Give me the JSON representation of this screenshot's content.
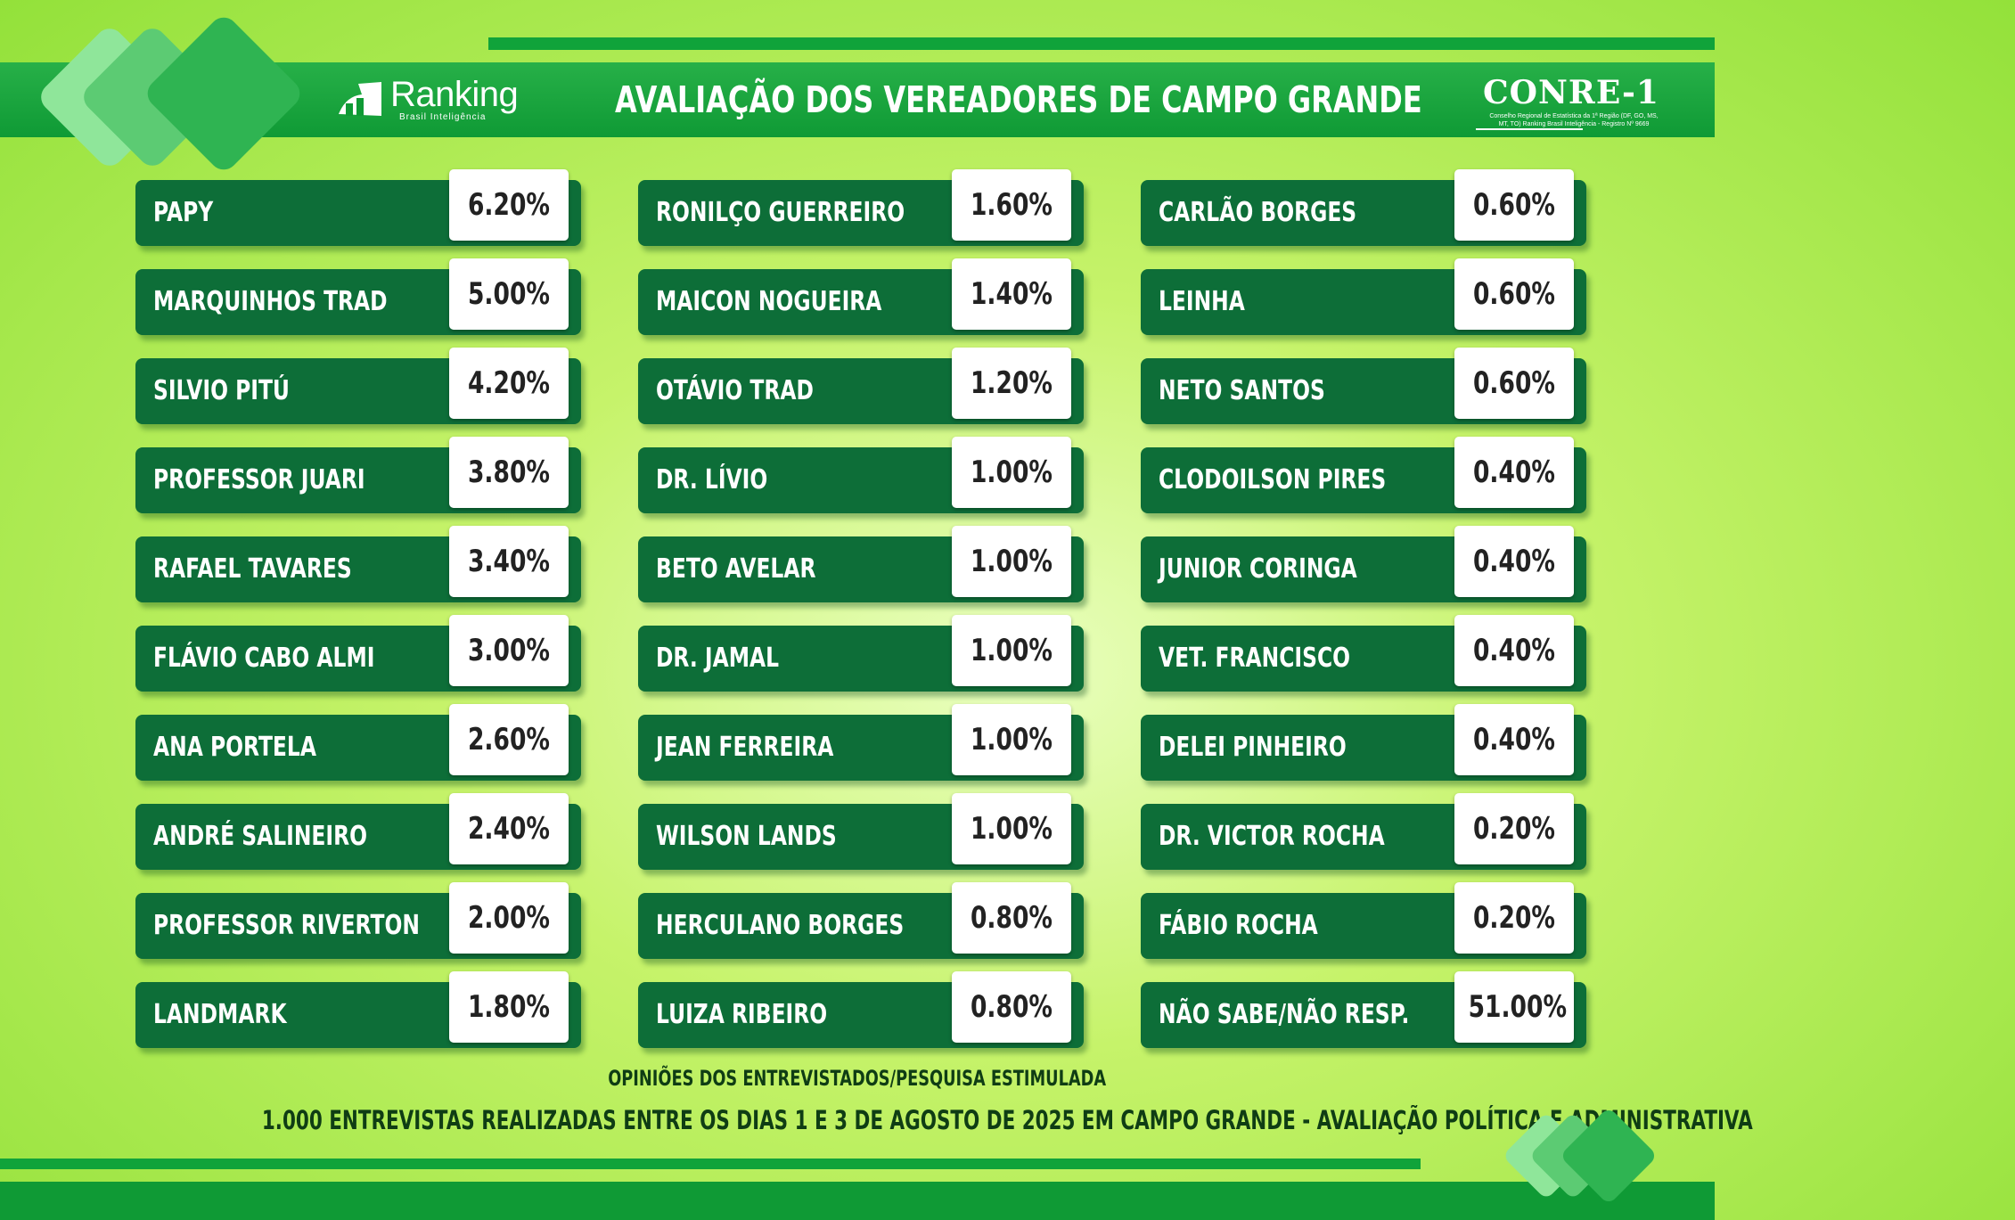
{
  "header": {
    "title": "AVALIAÇÃO DOS VEREADORES DE CAMPO GRANDE",
    "left_logo": "Ranking",
    "left_logo_sub": "Brasil Inteligência",
    "right_logo": "CONRE-1",
    "right_logo_sub": "Conselho Regional de Estatística da 1ª Região (DF, GO, MS, MT, TO) Ranking Brasil Inteligência - Registro Nº 9669"
  },
  "chart_data": {
    "type": "table",
    "title": "AVALIAÇÃO DOS VEREADORES DE CAMPO GRANDE",
    "columns": [
      [
        {
          "name": "PAPY",
          "label": "6.20%",
          "value": 6.2
        },
        {
          "name": "MARQUINHOS TRAD",
          "label": "5.00%",
          "value": 5.0
        },
        {
          "name": "SILVIO PITÚ",
          "label": "4.20%",
          "value": 4.2
        },
        {
          "name": "PROFESSOR JUARI",
          "label": "3.80%",
          "value": 3.8
        },
        {
          "name": "RAFAEL TAVARES",
          "label": "3.40%",
          "value": 3.4
        },
        {
          "name": "FLÁVIO CABO ALMI",
          "label": "3.00%",
          "value": 3.0
        },
        {
          "name": "ANA PORTELA",
          "label": "2.60%",
          "value": 2.6
        },
        {
          "name": "ANDRÉ SALINEIRO",
          "label": "2.40%",
          "value": 2.4
        },
        {
          "name": "PROFESSOR RIVERTON",
          "label": "2.00%",
          "value": 2.0
        },
        {
          "name": "LANDMARK",
          "label": "1.80%",
          "value": 1.8
        }
      ],
      [
        {
          "name": "RONILÇO GUERREIRO",
          "label": "1.60%",
          "value": 1.6
        },
        {
          "name": "MAICON NOGUEIRA",
          "label": "1.40%",
          "value": 1.4
        },
        {
          "name": "OTÁVIO TRAD",
          "label": "1.20%",
          "value": 1.2
        },
        {
          "name": "DR. LÍVIO",
          "label": "1.00%",
          "value": 1.0
        },
        {
          "name": "BETO AVELAR",
          "label": "1.00%",
          "value": 1.0
        },
        {
          "name": "DR. JAMAL",
          "label": "1.00%",
          "value": 1.0
        },
        {
          "name": "JEAN FERREIRA",
          "label": "1.00%",
          "value": 1.0
        },
        {
          "name": "WILSON LANDS",
          "label": "1.00%",
          "value": 1.0
        },
        {
          "name": "HERCULANO BORGES",
          "label": "0.80%",
          "value": 0.8
        },
        {
          "name": "LUIZA RIBEIRO",
          "label": "0.80%",
          "value": 0.8
        }
      ],
      [
        {
          "name": "CARLÃO BORGES",
          "label": "0.60%",
          "value": 0.6
        },
        {
          "name": "LEINHA",
          "label": "0.60%",
          "value": 0.6
        },
        {
          "name": "NETO SANTOS",
          "label": "0.60%",
          "value": 0.6
        },
        {
          "name": "CLODOILSON PIRES",
          "label": "0.40%",
          "value": 0.4
        },
        {
          "name": "JUNIOR CORINGA",
          "label": "0.40%",
          "value": 0.4
        },
        {
          "name": "VET. FRANCISCO",
          "label": "0.40%",
          "value": 0.4
        },
        {
          "name": "DELEI PINHEIRO",
          "label": "0.40%",
          "value": 0.4
        },
        {
          "name": "DR. VICTOR ROCHA",
          "label": "0.20%",
          "value": 0.2
        },
        {
          "name": "FÁBIO ROCHA",
          "label": "0.20%",
          "value": 0.2
        },
        {
          "name": "NÃO SABE/NÃO RESP.",
          "label": "51.00%",
          "value": 51.0
        }
      ]
    ]
  },
  "footer": {
    "note1": "OPINIÕES DOS ENTREVISTADOS/PESQUISA ESTIMULADA",
    "note2": "1.000 ENTREVISTAS REALIZADAS ENTRE OS DIAS 1 E 3 DE AGOSTO DE 2025 EM CAMPO GRANDE - AVALIAÇÃO POLÍTICA E ADMINISTRATIVA"
  },
  "colors": {
    "bar": "#0d6e38",
    "header": "#0f9a35",
    "accent_light": "#8fe69a",
    "background": "#c6f36a"
  }
}
